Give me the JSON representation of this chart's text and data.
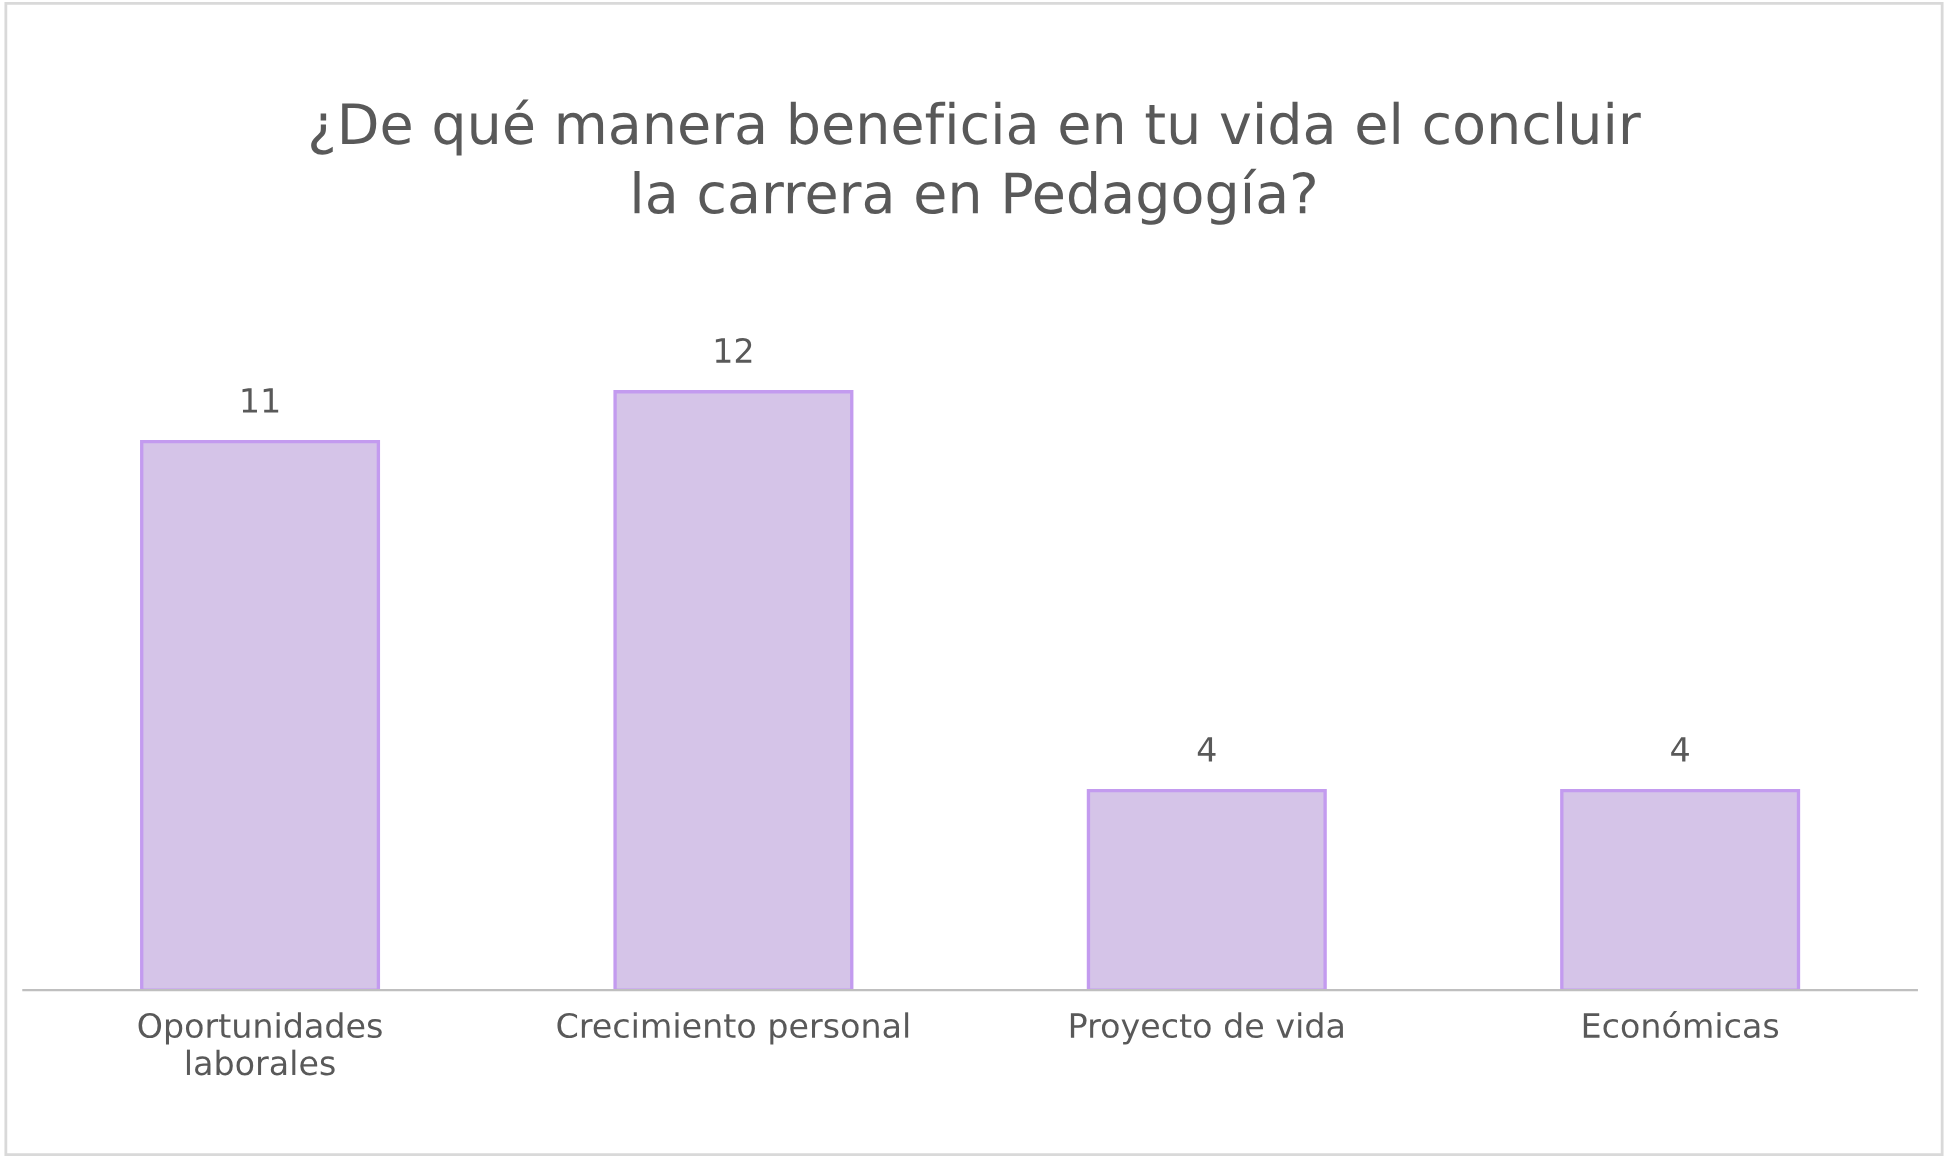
{
  "chart_data": {
    "type": "bar",
    "title": "¿De qué manera beneficia en tu vida el concluir\nla carrera en Pedagogía?",
    "categories": [
      "Oportunidades laborales",
      "Crecimiento personal",
      "Proyecto de vida",
      "Económicas"
    ],
    "values": [
      11,
      12,
      4,
      4
    ],
    "color": "#d5c4e8",
    "data_labels": true,
    "grid": false,
    "legend": false
  }
}
